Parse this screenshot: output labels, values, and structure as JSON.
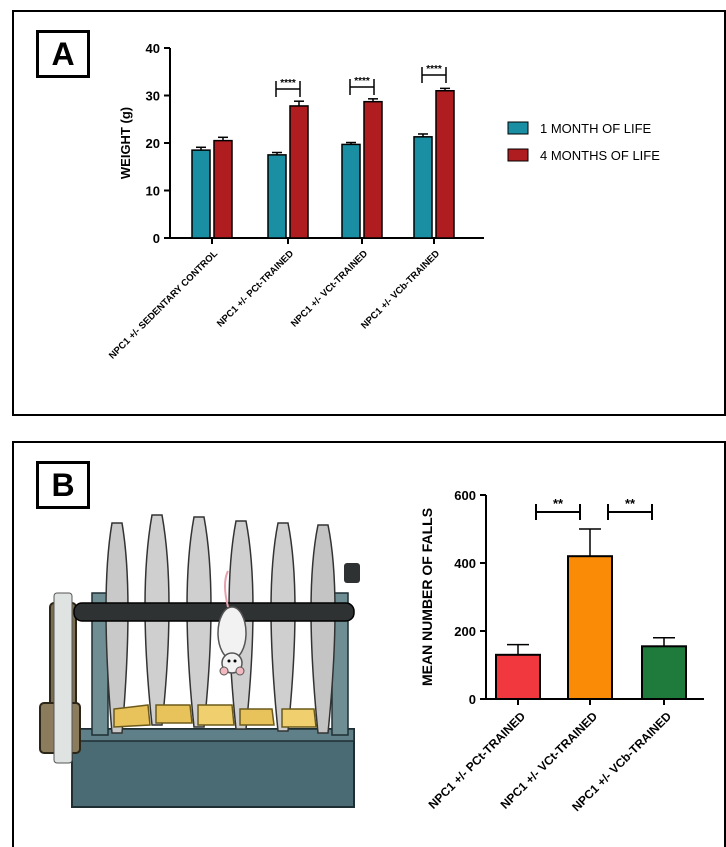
{
  "panels": {
    "a_label": "A",
    "b_label": "B"
  },
  "colors": {
    "teal": "#1a8fa3",
    "darkred": "#b01d20",
    "red": "#f2383f",
    "orange": "#f98b07",
    "green": "#1e7b3c"
  },
  "chart_data": [
    {
      "type": "bar",
      "ylabel": "WEIGHT (g)",
      "ylim": [
        0,
        40
      ],
      "yticks": [
        "0",
        "10",
        "20",
        "30",
        "40"
      ],
      "categories": [
        "NPC1 +/- SEDENTARY CONTROL",
        "NPC1 +/- PCt-TRAINED",
        "NPC1 +/- VCt-TRAINED",
        "NPC1 +/- VCb-TRAINED"
      ],
      "series": [
        {
          "name": "1 MONTH OF LIFE",
          "values": [
            18.5,
            17.5,
            19.7,
            21.3
          ],
          "errors": [
            0.6,
            0.5,
            0.4,
            0.6
          ],
          "color": "#1a8fa3"
        },
        {
          "name": "4 MONTHS OF LIFE",
          "values": [
            20.5,
            27.8,
            28.7,
            31.0
          ],
          "errors": [
            0.7,
            1.0,
            0.6,
            0.5
          ],
          "color": "#b01d20"
        }
      ],
      "significance": [
        "****",
        "****",
        "****"
      ],
      "legend": "right"
    },
    {
      "type": "bar",
      "ylabel": "MEAN NUMBER OF FALLS",
      "ylim": [
        0,
        600
      ],
      "yticks": [
        "0",
        "200",
        "400",
        "600"
      ],
      "categories": [
        "NPC1 +/- PCt-TRAINED",
        "NPC1 +/- VCt-TRAINED",
        "NPC1 +/- VCb-TRAINED"
      ],
      "values": [
        130,
        420,
        155
      ],
      "errors": [
        30,
        80,
        25
      ],
      "colors": [
        "#f2383f",
        "#f98b07",
        "#1e7b3c"
      ],
      "significance": [
        "**",
        "**"
      ]
    }
  ]
}
